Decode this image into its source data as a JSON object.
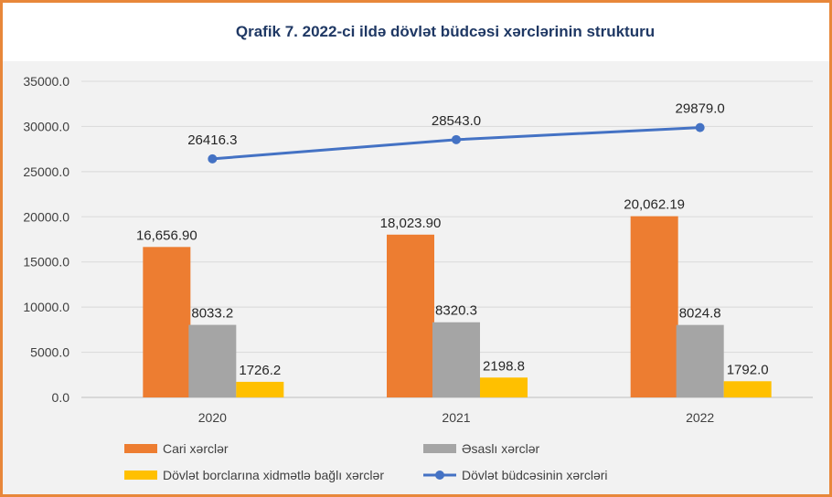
{
  "chart_data": {
    "type": "bar",
    "title": "Qrafik 7. 2022-ci ildə dövlət büdcəsi xərclərinin strukturu",
    "categories": [
      "2020",
      "2021",
      "2022"
    ],
    "ylim": [
      0,
      35000
    ],
    "yticks": [
      "0.0",
      "5000.0",
      "10000.0",
      "15000.0",
      "20000.0",
      "25000.0",
      "30000.0",
      "35000.0"
    ],
    "grid": true,
    "legend_position": "bottom",
    "series": [
      {
        "name": "Cari xərclər",
        "kind": "bar",
        "color": "#ED7D31",
        "values": [
          16656.9,
          18023.9,
          20062.19
        ],
        "labels": [
          "16,656.90",
          "18,023.90",
          "20,062.19"
        ]
      },
      {
        "name": "Əsaslı xərclər",
        "kind": "bar",
        "color": "#A5A5A5",
        "values": [
          8033.2,
          8320.3,
          8024.8
        ],
        "labels": [
          "8033.2",
          "8320.3",
          "8024.8"
        ]
      },
      {
        "name": "Dövlət borclarına xidmətlə bağlı xərclər",
        "kind": "bar",
        "color": "#FFC000",
        "values": [
          1726.2,
          2198.8,
          1792.0
        ],
        "labels": [
          "1726.2",
          "2198.8",
          "1792.0"
        ]
      },
      {
        "name": "Dövlət büdcəsinin xərcləri",
        "kind": "line",
        "color": "#4472C4",
        "values": [
          26416.3,
          28543.0,
          29879.0
        ],
        "labels": [
          "26416.3",
          "28543.0",
          "29879.0"
        ]
      }
    ]
  }
}
